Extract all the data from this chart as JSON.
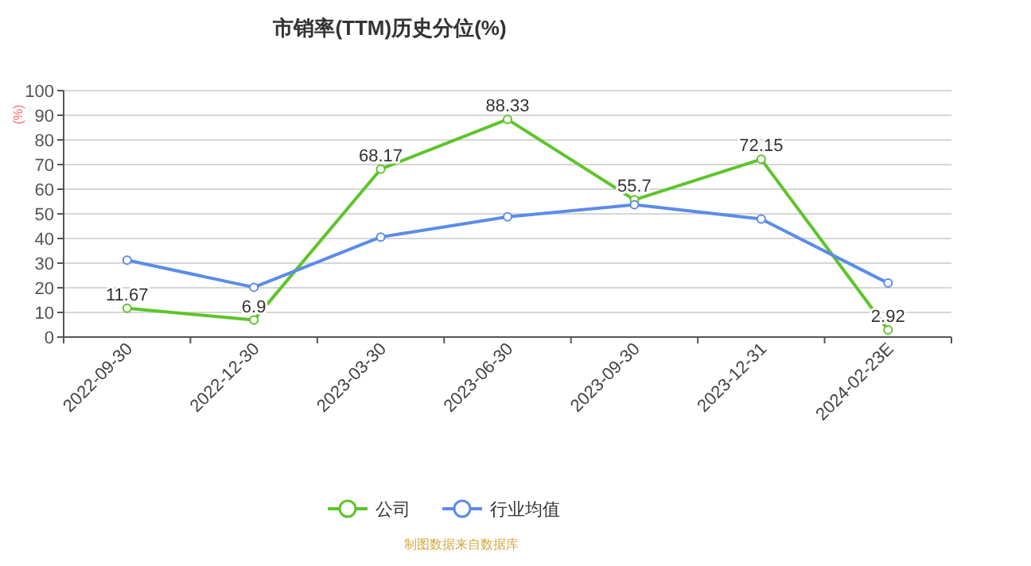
{
  "chart_data": {
    "type": "line",
    "title": "市销率(TTM)历史分位(%)",
    "ylabel": "(%)",
    "categories": [
      "2022-09-30",
      "2022-12-30",
      "2023-03-30",
      "2023-06-30",
      "2023-09-30",
      "2023-12-31",
      "2024-02-23E"
    ],
    "series": [
      {
        "name": "公司",
        "color": "#5ec42a",
        "values": [
          11.67,
          6.9,
          68.17,
          88.33,
          55.7,
          72.15,
          2.92
        ],
        "value_labels": [
          "11.67",
          "6.9",
          "68.17",
          "88.33",
          "55.7",
          "72.15",
          "2.92"
        ]
      },
      {
        "name": "行业均值",
        "color": "#5b8ce8",
        "values": [
          31.2,
          20.2,
          40.6,
          48.8,
          53.7,
          47.9,
          21.9
        ]
      }
    ],
    "ylim": [
      0,
      100
    ],
    "yticks": [
      0,
      10,
      20,
      30,
      40,
      50,
      60,
      70,
      80,
      90,
      100
    ],
    "grid": "y",
    "legend": "bottom",
    "marker": "circle",
    "line_style": "solid",
    "annotations": [
      "制图数据来自数据库"
    ]
  }
}
